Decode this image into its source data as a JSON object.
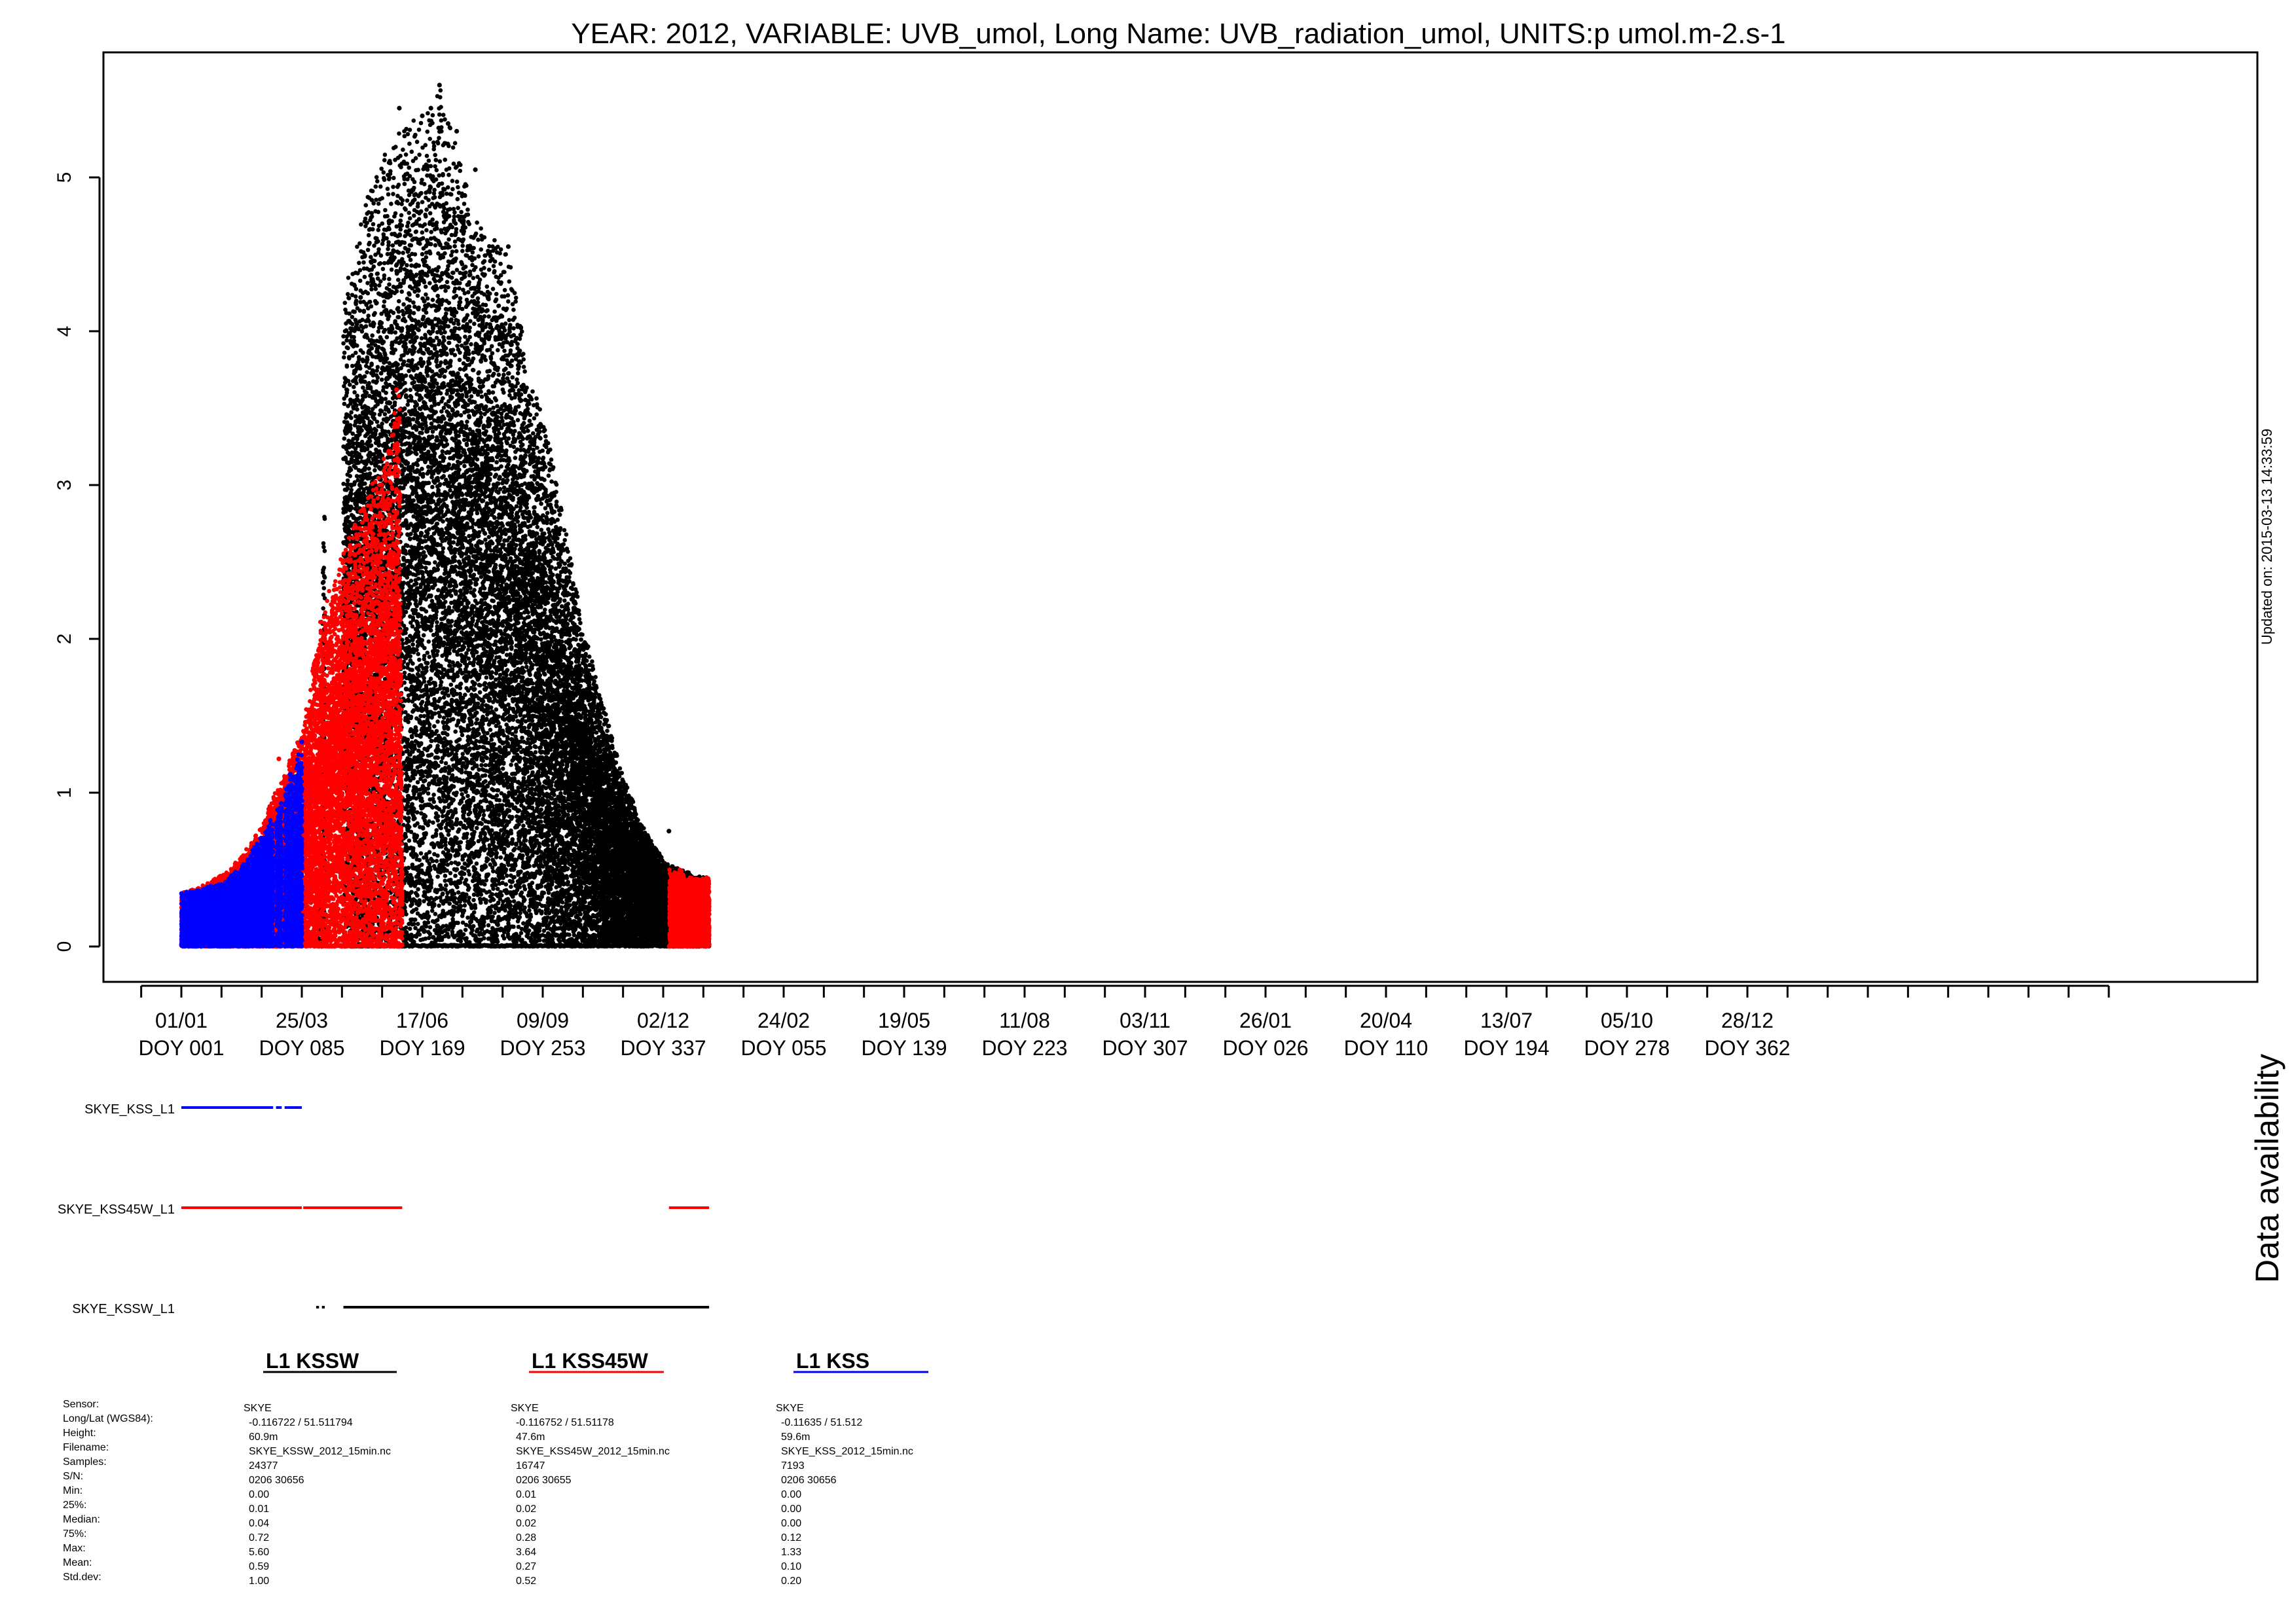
{
  "chart_data": {
    "type": "scatter",
    "title": "YEAR: 2012, VARIABLE: UVB_umol, Long Name: UVB_radiation_umol, UNITS:p umol.m-2.s-1",
    "updated": "Updated on: 2015-03-13 14:33:59",
    "ylim": [
      -0.25,
      5.85
    ],
    "yticks": [
      0,
      1,
      2,
      3,
      4,
      5
    ],
    "ytick_labels": [
      "0",
      "1",
      "2",
      "3",
      "4",
      "5"
    ],
    "xlim": [
      -20,
      1435
    ],
    "xticks_minor_step": 28,
    "xtick_labels": [
      {
        "day": 0,
        "date": "01/01",
        "doy": "DOY 001"
      },
      {
        "day": 84,
        "date": "25/03",
        "doy": "DOY 085"
      },
      {
        "day": 168,
        "date": "17/06",
        "doy": "DOY 169"
      },
      {
        "day": 252,
        "date": "09/09",
        "doy": "DOY 253"
      },
      {
        "day": 336,
        "date": "02/12",
        "doy": "DOY 337"
      },
      {
        "day": 420,
        "date": "24/02",
        "doy": "DOY 055"
      },
      {
        "day": 504,
        "date": "19/05",
        "doy": "DOY 139"
      },
      {
        "day": 588,
        "date": "11/08",
        "doy": "DOY 223"
      },
      {
        "day": 672,
        "date": "03/11",
        "doy": "DOY 307"
      },
      {
        "day": 756,
        "date": "26/01",
        "doy": "DOY 026"
      },
      {
        "day": 840,
        "date": "20/04",
        "doy": "DOY 110"
      },
      {
        "day": 924,
        "date": "13/07",
        "doy": "DOY 194"
      },
      {
        "day": 1008,
        "date": "05/10",
        "doy": "DOY 278"
      },
      {
        "day": 1092,
        "date": "28/12",
        "doy": "DOY 362"
      }
    ],
    "series": [
      {
        "name": "SKYE_KSSW_L1",
        "color": "#000000",
        "envelope": [
          [
            95,
            0
          ],
          [
            98,
            2.4
          ],
          [
            104,
            3.9
          ],
          [
            112,
            4.2
          ],
          [
            120,
            4.5
          ],
          [
            132,
            5.0
          ],
          [
            148,
            5.3
          ],
          [
            168,
            5.4
          ],
          [
            180,
            5.6
          ],
          [
            196,
            5.05
          ],
          [
            210,
            4.7
          ],
          [
            228,
            4.5
          ],
          [
            238,
            4.0
          ],
          [
            244,
            3.7
          ],
          [
            252,
            3.5
          ],
          [
            264,
            2.9
          ],
          [
            276,
            2.3
          ],
          [
            292,
            1.65
          ],
          [
            308,
            1.1
          ],
          [
            324,
            0.75
          ],
          [
            334,
            0.6
          ],
          [
            336,
            0.55
          ],
          [
            348,
            0.5
          ],
          [
            366,
            0.45
          ],
          [
            368,
            0
          ]
        ],
        "extremes": [
          [
            180,
            5.6
          ],
          [
            174,
            5.45
          ],
          [
            152,
            5.45
          ],
          [
            168,
            5.4
          ],
          [
            186,
            5.35
          ],
          [
            192,
            5.3
          ],
          [
            205,
            5.05
          ],
          [
            117,
            3.98
          ],
          [
            125,
            4.22
          ],
          [
            228,
            4.55
          ],
          [
            340,
            0.75
          ]
        ],
        "availability": [
          [
            94,
            96
          ],
          [
            98,
            100
          ],
          [
            113,
            368
          ]
        ]
      },
      {
        "name": "SKYE_KSS45W_L1",
        "color": "#ff0000",
        "envelope": [
          [
            0,
            0.35
          ],
          [
            16,
            0.4
          ],
          [
            34,
            0.5
          ],
          [
            54,
            0.75
          ],
          [
            72,
            1.15
          ],
          [
            84,
            1.4
          ],
          [
            90,
            1.7
          ],
          [
            96,
            2.1
          ],
          [
            104,
            2.35
          ],
          [
            114,
            2.6
          ],
          [
            128,
            2.9
          ],
          [
            144,
            3.25
          ],
          [
            152,
            3.65
          ],
          [
            154,
            0
          ],
          [
            340,
            0.5
          ],
          [
            368,
            0.45
          ]
        ],
        "extremes": [
          [
            150,
            3.62
          ],
          [
            141,
            2.85
          ],
          [
            130,
            2.6
          ],
          [
            100,
            2.0
          ],
          [
            68,
            1.22
          ]
        ],
        "availability": [
          [
            0,
            84
          ],
          [
            85,
            154
          ],
          [
            340,
            368
          ]
        ]
      },
      {
        "name": "SKYE_KSS_L1",
        "color": "#0000ff",
        "envelope": [
          [
            0,
            0.35
          ],
          [
            14,
            0.38
          ],
          [
            30,
            0.42
          ],
          [
            44,
            0.55
          ],
          [
            56,
            0.72
          ],
          [
            64,
            0.85
          ],
          [
            72,
            1.0
          ],
          [
            80,
            1.22
          ],
          [
            84,
            1.33
          ],
          [
            84,
            0
          ]
        ],
        "extremes": [
          [
            84,
            1.33
          ],
          [
            76,
            1.12
          ],
          [
            62,
            0.82
          ]
        ],
        "availability": [
          [
            0,
            64
          ],
          [
            66,
            70
          ],
          [
            72,
            84
          ]
        ]
      }
    ],
    "legend": [
      {
        "label": "L1 KSSW",
        "color": "#000000"
      },
      {
        "label": "L1 KSS45W",
        "color": "#ff0000"
      },
      {
        "label": "L1 KSS",
        "color": "#0000ff"
      }
    ],
    "availability_title": "Data availability",
    "stats": {
      "row_labels": [
        "Sensor:",
        "Long/Lat (WGS84):",
        "Height:",
        "Filename:",
        "Samples:",
        "S/N:",
        "Min:",
        "25%:",
        "Median:",
        "75%:",
        "Max:",
        "Mean:",
        "Std.dev:"
      ],
      "columns": [
        [
          "SKYE",
          "-0.116722 / 51.511794",
          "60.9m",
          "SKYE_KSSW_2012_15min.nc",
          "24377",
          "0206 30656",
          "0.00",
          "0.01",
          "0.04",
          "0.72",
          "5.60",
          "0.59",
          "1.00"
        ],
        [
          "SKYE",
          "-0.116752 / 51.51178",
          "47.6m",
          "SKYE_KSS45W_2012_15min.nc",
          "16747",
          "0206 30655",
          "0.01",
          "0.02",
          "0.02",
          "0.28",
          "3.64",
          "0.27",
          "0.52"
        ],
        [
          "SKYE",
          "-0.11635 / 51.512",
          "59.6m",
          "SKYE_KSS_2012_15min.nc",
          "7193",
          "0206 30656",
          "0.00",
          "0.00",
          "0.00",
          "0.12",
          "1.33",
          "0.10",
          "0.20"
        ]
      ]
    }
  }
}
